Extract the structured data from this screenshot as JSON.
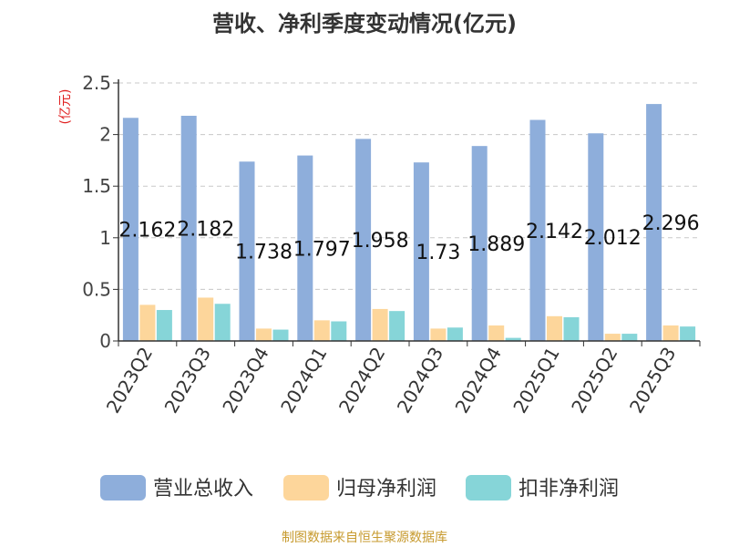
{
  "title": "营收、净利季度变动情况(亿元)",
  "footer": "制图数据来自恒生聚源数据库",
  "chart_data": {
    "type": "bar",
    "ylabel": "(亿元)",
    "ylim": [
      0,
      2.5
    ],
    "yticks": [
      0,
      0.5,
      1,
      1.5,
      2,
      2.5
    ],
    "ytick_labels": [
      "0",
      "0.5",
      "1",
      "1.5",
      "2",
      "2.5"
    ],
    "grid": true,
    "legend_position": "bottom",
    "categories": [
      "2023Q2",
      "2023Q3",
      "2023Q4",
      "2024Q1",
      "2024Q2",
      "2024Q3",
      "2024Q4",
      "2025Q1",
      "2025Q2",
      "2025Q3"
    ],
    "series": [
      {
        "name": "营业总收入",
        "color": "#8eaedb",
        "values": [
          2.162,
          2.182,
          1.738,
          1.797,
          1.958,
          1.73,
          1.889,
          2.142,
          2.012,
          2.296
        ],
        "labels": [
          "2.162",
          "2.182",
          "1.738",
          "1.797",
          "1.958",
          "1.73",
          "1.889",
          "2.142",
          "2.012",
          "2.296"
        ]
      },
      {
        "name": "归母净利润",
        "color": "#fdd69b",
        "values": [
          0.35,
          0.42,
          0.12,
          0.2,
          0.31,
          0.12,
          0.15,
          0.24,
          0.07,
          0.15
        ]
      },
      {
        "name": "扣非净利润",
        "color": "#86d5d8",
        "values": [
          0.3,
          0.36,
          0.11,
          0.19,
          0.29,
          0.13,
          0.03,
          0.23,
          0.07,
          0.14
        ]
      }
    ]
  }
}
